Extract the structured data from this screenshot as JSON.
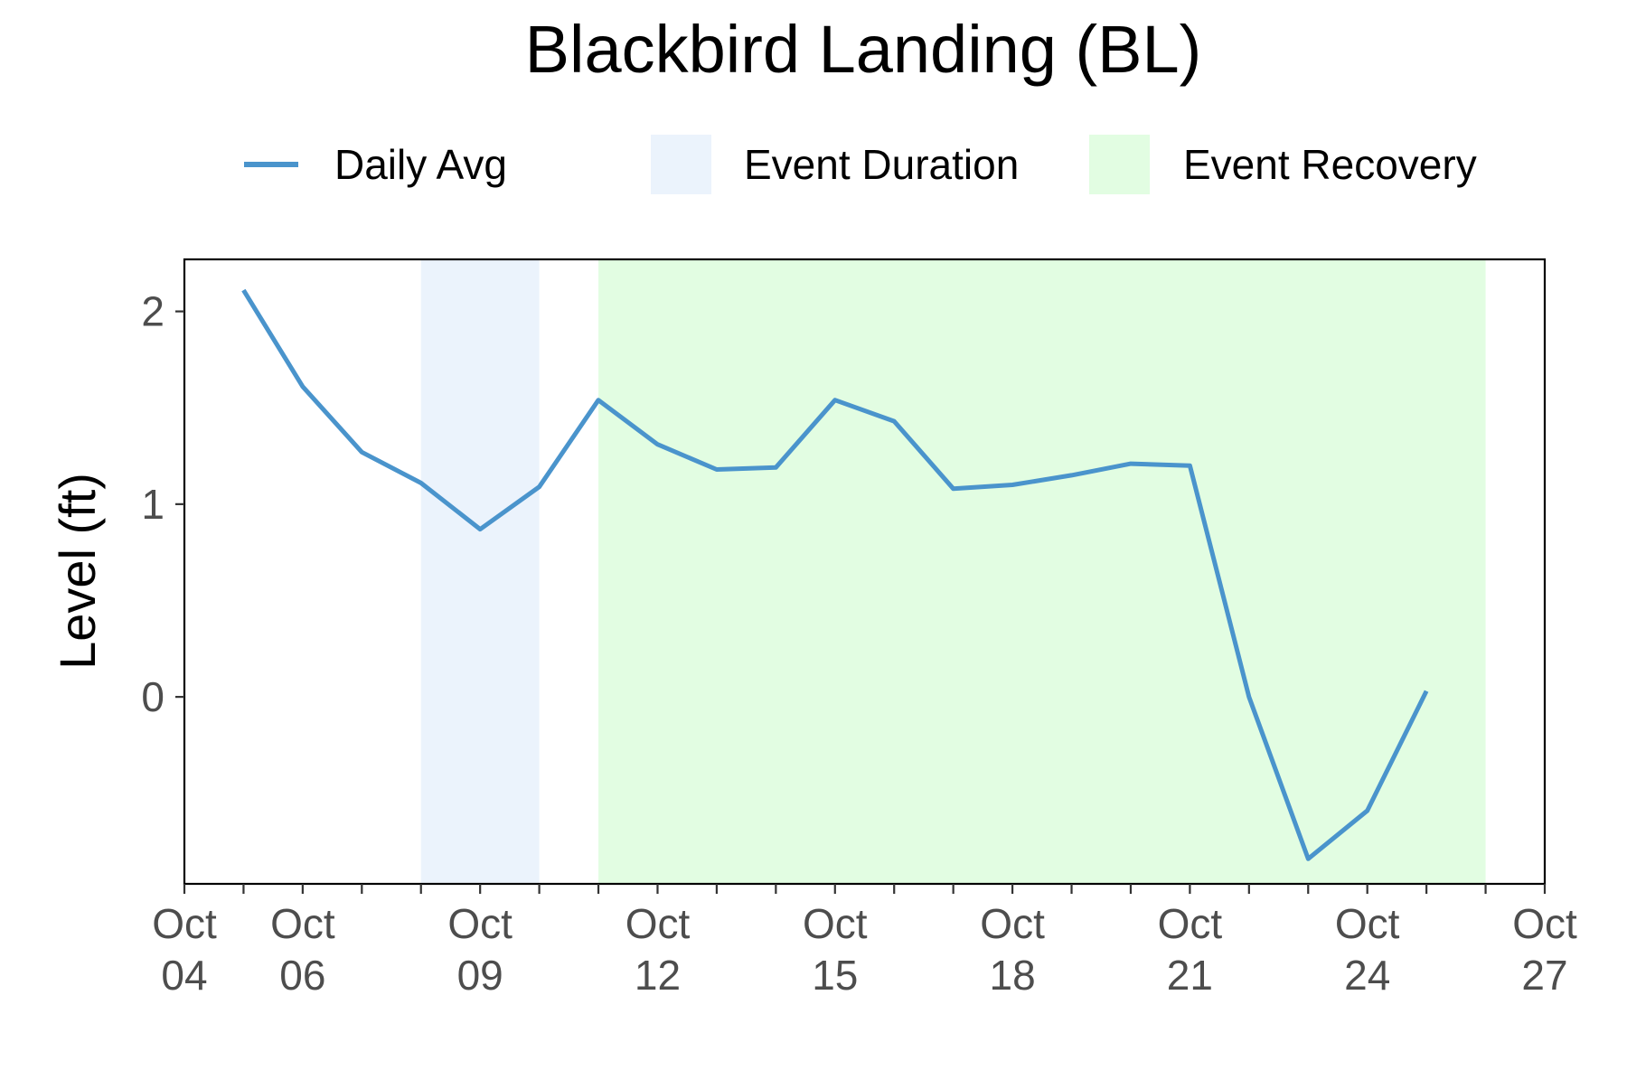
{
  "chart_data": {
    "type": "line",
    "title": "Blackbird Landing (BL)",
    "ylabel": "Level (ft)",
    "xlabel": "",
    "x_range": [
      "2023-10-04",
      "2023-10-27"
    ],
    "ylim": [
      -0.97,
      2.27
    ],
    "y_ticks": [
      0,
      1,
      2
    ],
    "y_tick_labels": [
      "0",
      "1",
      "2"
    ],
    "x_ticks": [
      {
        "date": "2023-10-04",
        "line1": "Oct",
        "line2": "04"
      },
      {
        "date": "2023-10-06",
        "line1": "Oct",
        "line2": "06"
      },
      {
        "date": "2023-10-09",
        "line1": "Oct",
        "line2": "09"
      },
      {
        "date": "2023-10-12",
        "line1": "Oct",
        "line2": "12"
      },
      {
        "date": "2023-10-15",
        "line1": "Oct",
        "line2": "15"
      },
      {
        "date": "2023-10-18",
        "line1": "Oct",
        "line2": "18"
      },
      {
        "date": "2023-10-21",
        "line1": "Oct",
        "line2": "21"
      },
      {
        "date": "2023-10-24",
        "line1": "Oct",
        "line2": "24"
      },
      {
        "date": "2023-10-27",
        "line1": "Oct",
        "line2": "27"
      }
    ],
    "grid": false,
    "legend_position": "top",
    "series": [
      {
        "name": "Daily Avg",
        "color": "#4a94cc",
        "x": [
          "2023-10-05",
          "2023-10-06",
          "2023-10-07",
          "2023-10-08",
          "2023-10-09",
          "2023-10-10",
          "2023-10-11",
          "2023-10-12",
          "2023-10-13",
          "2023-10-14",
          "2023-10-15",
          "2023-10-16",
          "2023-10-17",
          "2023-10-18",
          "2023-10-19",
          "2023-10-20",
          "2023-10-21",
          "2023-10-22",
          "2023-10-23",
          "2023-10-24",
          "2023-10-25"
        ],
        "values": [
          2.11,
          1.61,
          1.27,
          1.11,
          0.87,
          1.09,
          1.54,
          1.31,
          1.18,
          1.19,
          1.54,
          1.43,
          1.08,
          1.1,
          1.15,
          1.21,
          1.2,
          0.0,
          -0.84,
          -0.59,
          0.03
        ]
      }
    ],
    "shaded_regions": [
      {
        "name": "Event Duration",
        "start": "2023-10-08",
        "end": "2023-10-10",
        "color": "#ebf3fc"
      },
      {
        "name": "Event Recovery",
        "start": "2023-10-11",
        "end": "2023-10-26",
        "color": "#e2fde2"
      }
    ],
    "legend": [
      {
        "label": "Daily Avg",
        "kind": "line",
        "color": "#4a94cc"
      },
      {
        "label": "Event Duration",
        "kind": "fill",
        "color": "#ebf3fc"
      },
      {
        "label": "Event Recovery",
        "kind": "fill",
        "color": "#e2fde2"
      }
    ]
  }
}
